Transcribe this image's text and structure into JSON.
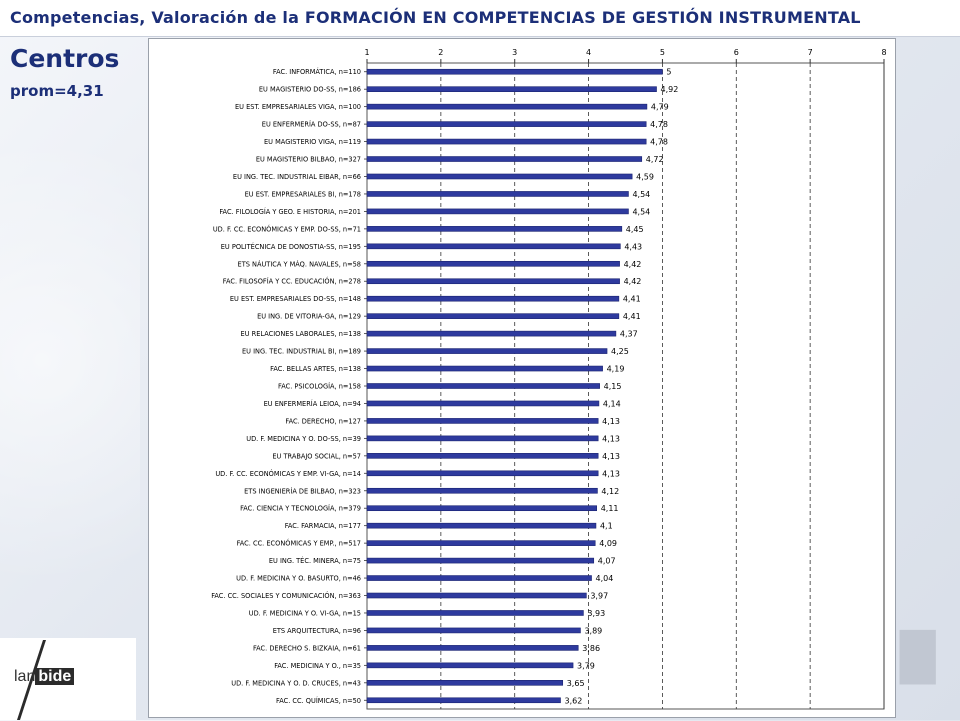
{
  "header": {
    "title": "Competencias, Valoración de la FORMACIÓN EN COMPETENCIAS DE GESTIÓN INSTRUMENTAL"
  },
  "section": {
    "heading": "Centros",
    "average_label": "prom=4,31"
  },
  "logo": {
    "part1": "lan",
    "part2": "bide"
  },
  "colors": {
    "bar": "#2e3a9e",
    "bar_edge": "#1a2370",
    "title": "#1c2f78"
  },
  "chart_data": {
    "type": "bar",
    "orientation": "horizontal",
    "title": "",
    "xlabel": "",
    "ylabel": "",
    "xlim": [
      1,
      8
    ],
    "xticks": [
      1,
      2,
      3,
      4,
      5,
      6,
      7,
      8
    ],
    "xtick_labels": [
      "1",
      "2",
      "3",
      "4",
      "5",
      "6",
      "7",
      "8"
    ],
    "grid": "vertical-dashed",
    "categories": [
      "FAC. INFORMÁTICA, n=110",
      "EU MAGISTERIO DO-SS, n=186",
      "EU EST. EMPRESARIALES VIGA, n=100",
      "EU ENFERMERÍA DO-SS, n=87",
      "EU MAGISTERIO VIGA, n=119",
      "EU MAGISTERIO BILBAO, n=327",
      "EU ING. TEC. INDUSTRIAL EIBAR, n=66",
      "EU EST. EMPRESARIALES BI, n=178",
      "FAC. FILOLOGÍA Y GEO. E HISTORIA, n=201",
      "UD. F. CC. ECONÓMICAS Y EMP. DO-SS, n=71",
      "EU POLITÉCNICA DE DONOSTIA-SS, n=195",
      "ETS NÁUTICA Y MÁQ. NAVALES, n=58",
      "FAC. FILOSOFÍA Y CC. EDUCACIÓN, n=278",
      "EU EST. EMPRESARIALES DO-SS, n=148",
      "EU ING. DE VITORIA-GA, n=129",
      "EU RELACIONES LABORALES, n=138",
      "EU ING. TEC. INDUSTRIAL BI, n=189",
      "FAC. BELLAS ARTES, n=138",
      "FAC. PSICOLOGÍA, n=158",
      "EU ENFERMERÍA LEIOA, n=94",
      "FAC. DERECHO, n=127",
      "UD. F. MEDICINA Y O. DO-SS, n=39",
      "EU TRABAJO SOCIAL, n=57",
      "UD. F. CC. ECONÓMICAS Y EMP. VI-GA, n=14",
      "ETS INGENIERÍA DE BILBAO, n=323",
      "FAC. CIENCIA Y TECNOLOGÍA, n=379",
      "FAC. FARMACIA, n=177",
      "FAC. CC. ECONÓMICAS Y EMP., n=517",
      "EU ING. TÉC. MINERA, n=75",
      "UD. F. MEDICINA Y O. BASURTO, n=46",
      "FAC. CC. SOCIALES Y COMUNICACIÓN, n=363",
      "UD. F. MEDICINA Y O. VI-GA, n=15",
      "ETS ARQUITECTURA, n=96",
      "FAC. DERECHO S. BIZKAIA, n=61",
      "FAC. MEDICINA Y O., n=35",
      "UD. F. MEDICINA Y O. D. CRUCES, n=43",
      "FAC. CC. QUÍMICAS, n=50"
    ],
    "values": [
      5,
      4.92,
      4.79,
      4.78,
      4.78,
      4.72,
      4.59,
      4.54,
      4.54,
      4.45,
      4.43,
      4.42,
      4.42,
      4.41,
      4.41,
      4.37,
      4.25,
      4.19,
      4.15,
      4.14,
      4.13,
      4.13,
      4.13,
      4.13,
      4.12,
      4.11,
      4.1,
      4.09,
      4.07,
      4.04,
      3.97,
      3.93,
      3.89,
      3.86,
      3.79,
      3.65,
      3.62
    ],
    "value_labels": [
      "5",
      "4,92",
      "4,79",
      "4,78",
      "4,78",
      "4,72",
      "4,59",
      "4,54",
      "4,54",
      "4,45",
      "4,43",
      "4,42",
      "4,42",
      "4,41",
      "4,41",
      "4,37",
      "4,25",
      "4,19",
      "4,15",
      "4,14",
      "4,13",
      "4,13",
      "4,13",
      "4,13",
      "4,12",
      "4,11",
      "4,1",
      "4,09",
      "4,07",
      "4,04",
      "3,97",
      "3,93",
      "3,89",
      "3,86",
      "3,79",
      "3,65",
      "3,62"
    ]
  }
}
